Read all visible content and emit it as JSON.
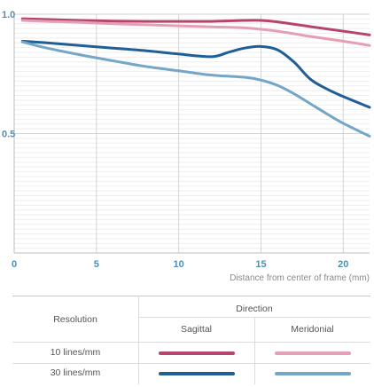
{
  "chart_data": {
    "type": "line",
    "title": "",
    "xlabel": "Distance from center of frame (mm)",
    "ylabel": "",
    "xlim": [
      0,
      21.6
    ],
    "ylim": [
      0,
      1.0
    ],
    "x_ticks": [
      "0",
      "5",
      "10",
      "15",
      "20"
    ],
    "y_ticks": [
      "0.5",
      "1.0"
    ],
    "grid": true,
    "series": [
      {
        "name": "10 lines/mm Sagittal",
        "color": "#b5456e",
        "x": [
          0.5,
          2,
          4,
          6,
          8,
          10,
          12,
          14,
          15,
          16,
          18,
          20,
          21.6
        ],
        "y": [
          0.981,
          0.978,
          0.974,
          0.971,
          0.97,
          0.97,
          0.97,
          0.974,
          0.974,
          0.968,
          0.948,
          0.929,
          0.913
        ]
      },
      {
        "name": "10 lines/mm Meridonial",
        "color": "#e59fb5",
        "x": [
          0.5,
          2,
          4,
          6,
          8,
          10,
          12,
          14,
          16,
          18,
          20,
          21.6
        ],
        "y": [
          0.974,
          0.97,
          0.966,
          0.96,
          0.956,
          0.951,
          0.947,
          0.943,
          0.929,
          0.907,
          0.887,
          0.869
        ]
      },
      {
        "name": "30 lines/mm Sagittal",
        "color": "#1f5f95",
        "x": [
          0.5,
          2,
          4,
          6,
          8,
          10,
          12,
          13,
          14,
          15,
          16,
          17,
          18,
          19,
          20,
          21.6
        ],
        "y": [
          0.887,
          0.88,
          0.869,
          0.858,
          0.847,
          0.833,
          0.822,
          0.84,
          0.858,
          0.865,
          0.851,
          0.8,
          0.728,
          0.687,
          0.655,
          0.61
        ]
      },
      {
        "name": "30 lines/mm Meridonial",
        "color": "#73a6c7",
        "x": [
          0.5,
          2,
          4,
          6,
          8,
          10,
          12,
          14,
          15,
          16,
          17,
          18,
          19,
          20,
          21.6
        ],
        "y": [
          0.884,
          0.858,
          0.83,
          0.805,
          0.781,
          0.763,
          0.745,
          0.736,
          0.724,
          0.702,
          0.667,
          0.625,
          0.583,
          0.543,
          0.489
        ]
      }
    ]
  },
  "legend": {
    "resolution_header": "Resolution",
    "direction_header": "Direction",
    "sagittal_header": "Sagittal",
    "meridonial_header": "Meridonial",
    "rows": [
      {
        "label": "10 lines/mm",
        "sagittal_color": "#b5456e",
        "meridonial_color": "#e59fb5"
      },
      {
        "label": "30 lines/mm",
        "sagittal_color": "#1f5f95",
        "meridonial_color": "#73a6c7"
      }
    ]
  }
}
